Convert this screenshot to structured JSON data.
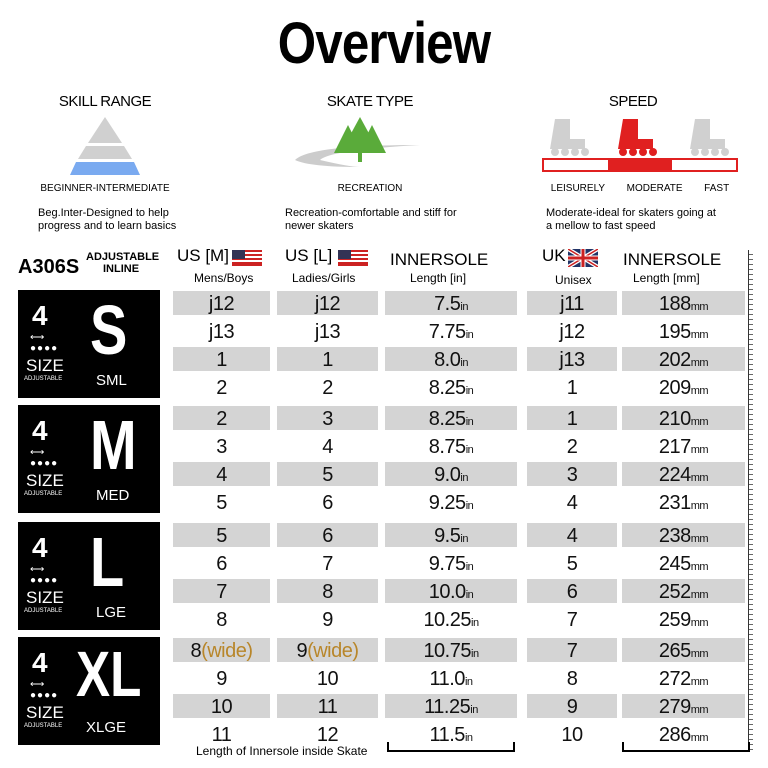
{
  "title": "Overview",
  "sections": [
    {
      "heading": "SKILL RANGE",
      "label": "BEGINNER-INTERMEDIATE",
      "desc1": "Beg.Inter-Designed to help",
      "desc2": "progress and to learn basics"
    },
    {
      "heading": "SKATE TYPE",
      "label": "RECREATION",
      "desc1": "Recreation-comfortable and stiff for",
      "desc2": "newer skaters"
    },
    {
      "heading": "SPEED",
      "label": "",
      "desc1": "Moderate-ideal for skaters going at",
      "desc2": "a mellow to fast speed"
    }
  ],
  "speed_levels": [
    "LEISURELY",
    "MODERATE",
    "FAST"
  ],
  "speed_selected": "MODERATE",
  "colors": {
    "accent": "#e02020",
    "skill": "#7aaaf0",
    "tree": "#5aab3a"
  },
  "model": "A306S",
  "model_sub1": "ADJUSTABLE",
  "model_sub2": "INLINE",
  "headers": {
    "us_m": "US [M]",
    "us_m_sub": "Mens/Boys",
    "us_l": "US [L]",
    "us_l_sub": "Ladies/Girls",
    "in": "INNERSOLE",
    "in_sub": "Length [in]",
    "uk": "UK",
    "uk_sub": "Unisex",
    "mm": "INNERSOLE",
    "mm_sub": "Length [mm]"
  },
  "units": {
    "in": "in",
    "mm": "mm"
  },
  "groups": [
    {
      "size": "S",
      "name": "SML",
      "num": "4",
      "size_word": "SIZE",
      "adj": "ADJUSTABLE",
      "rows": [
        [
          "j12",
          "j12",
          "7.5",
          "j11",
          "188"
        ],
        [
          "j13",
          "j13",
          "7.75",
          "j12",
          "195"
        ],
        [
          "1",
          "1",
          "8.0",
          "j13",
          "202"
        ],
        [
          "2",
          "2",
          "8.25",
          "1",
          "209"
        ]
      ]
    },
    {
      "size": "M",
      "name": "MED",
      "num": "4",
      "size_word": "SIZE",
      "adj": "ADJUSTABLE",
      "rows": [
        [
          "2",
          "3",
          "8.25",
          "1",
          "210"
        ],
        [
          "3",
          "4",
          "8.75",
          "2",
          "217"
        ],
        [
          "4",
          "5",
          "9.0",
          "3",
          "224"
        ],
        [
          "5",
          "6",
          "9.25",
          "4",
          "231"
        ]
      ]
    },
    {
      "size": "L",
      "name": "LGE",
      "num": "4",
      "size_word": "SIZE",
      "adj": "ADJUSTABLE",
      "rows": [
        [
          "5",
          "6",
          "9.5",
          "4",
          "238"
        ],
        [
          "6",
          "7",
          "9.75",
          "5",
          "245"
        ],
        [
          "7",
          "8",
          "10.0",
          "6",
          "252"
        ],
        [
          "8",
          "9",
          "10.25",
          "7",
          "259"
        ]
      ]
    },
    {
      "size": "XL",
      "name": "XLGE",
      "num": "4",
      "size_word": "SIZE",
      "adj": "ADJUSTABLE",
      "rows": [
        [
          "8",
          "9",
          "10.75",
          "7",
          "265"
        ],
        [
          "9",
          "10",
          "11.0",
          "8",
          "272"
        ],
        [
          "10",
          "11",
          "11.25",
          "9",
          "279"
        ],
        [
          "11",
          "12",
          "11.5",
          "10",
          "286"
        ]
      ]
    }
  ],
  "wide_suffix": "(wide)",
  "footnote": "Length of Innersole inside Skate"
}
